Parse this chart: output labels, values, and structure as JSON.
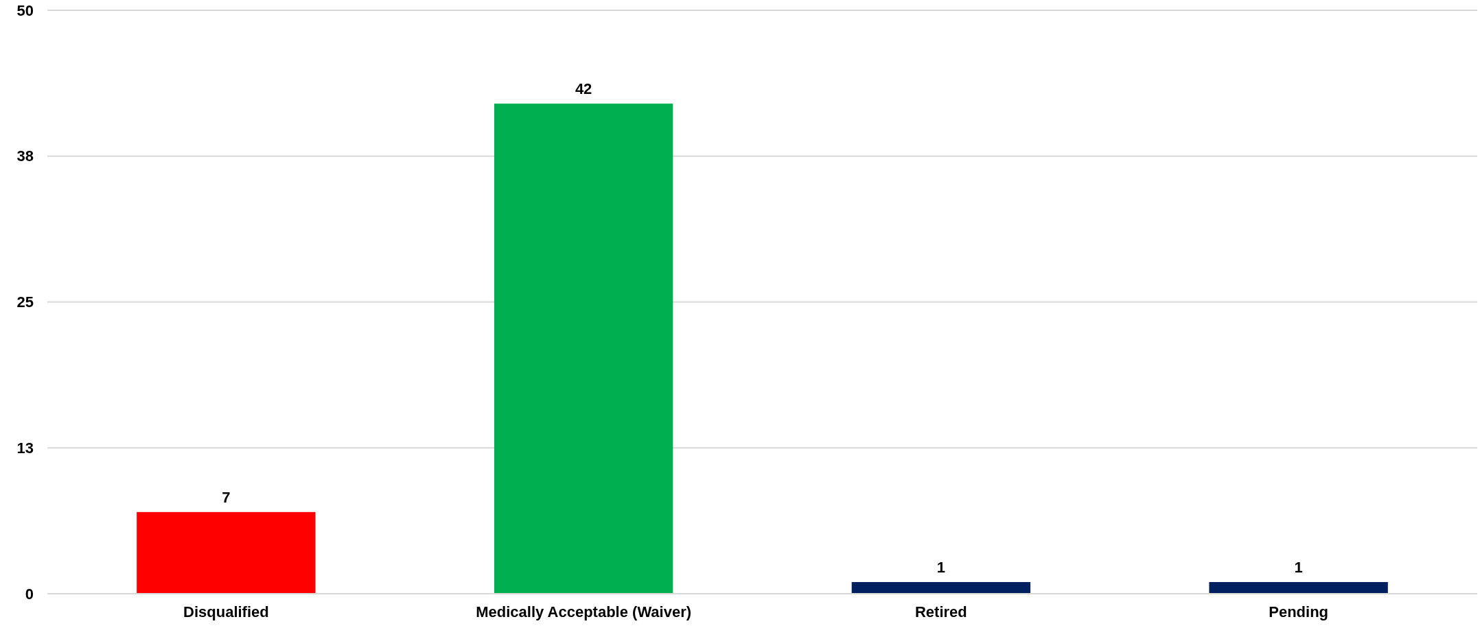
{
  "chart_data": {
    "type": "bar",
    "categories": [
      "Disqualified",
      "Medically Acceptable (Waiver)",
      "Retired",
      "Pending"
    ],
    "values": [
      7,
      42,
      1,
      1
    ],
    "colors": [
      "#ff0000",
      "#00b050",
      "#002060",
      "#002060"
    ],
    "ylim": [
      0,
      50
    ],
    "yticks": [
      0,
      {
        "value": 12.5,
        "label": "13"
      },
      25,
      {
        "value": 37.5,
        "label": "38"
      },
      50
    ],
    "grid": "y",
    "data_labels": true
  }
}
